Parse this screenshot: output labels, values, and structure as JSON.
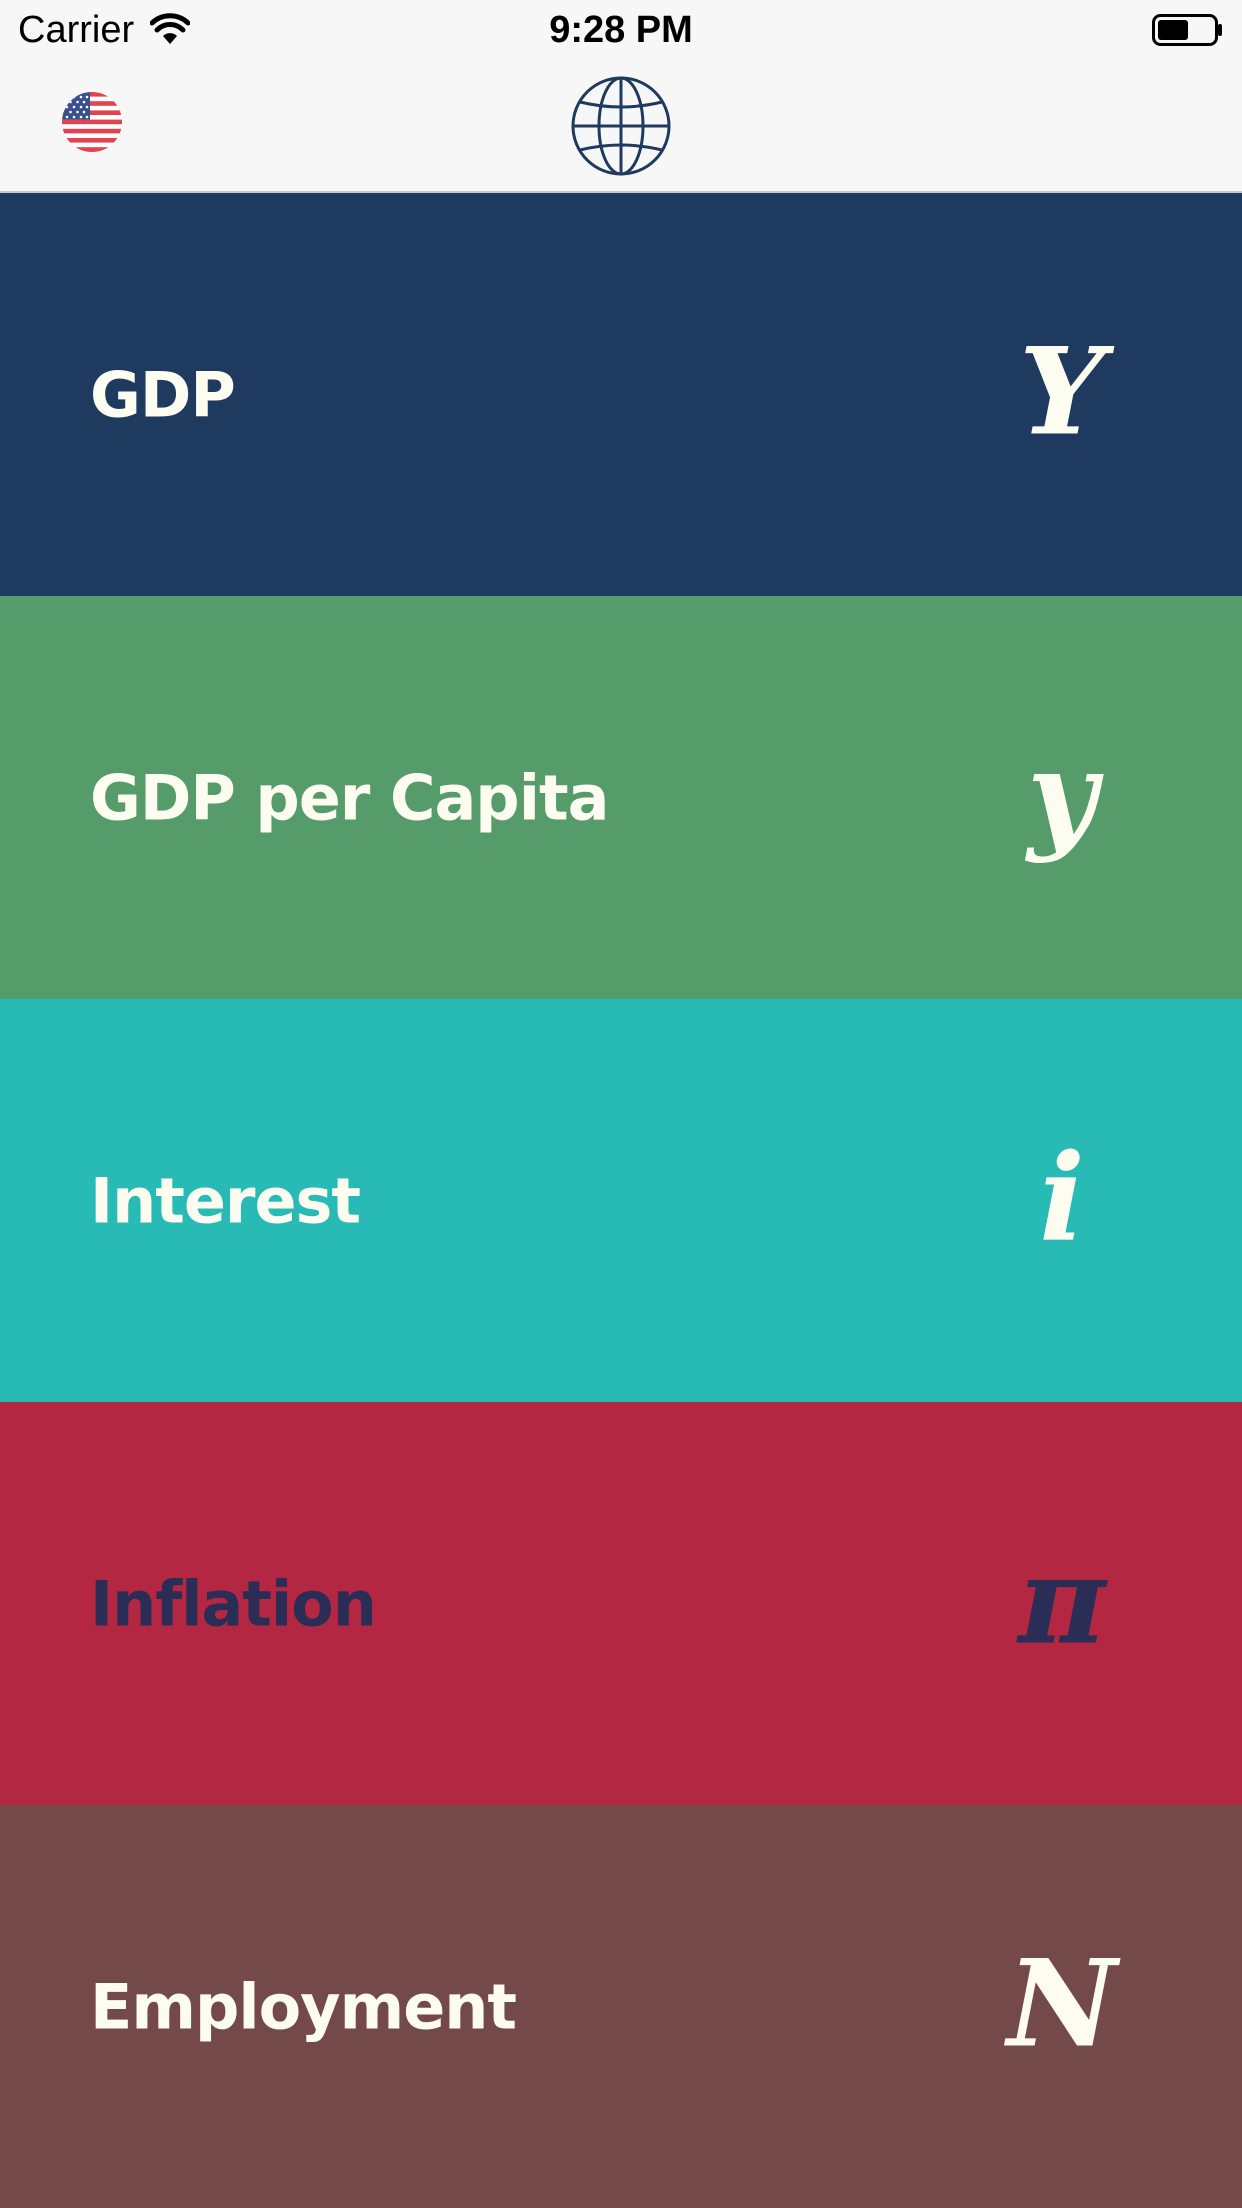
{
  "status_bar": {
    "carrier": "Carrier",
    "time": "9:28 PM",
    "wifi_icon": "wifi-icon",
    "battery_icon": "battery-icon"
  },
  "nav_bar": {
    "country_icon": "us-flag-icon",
    "globe_icon": "globe-icon"
  },
  "categories": [
    {
      "label": "GDP",
      "symbol": "Y",
      "background": "#1f3a5f",
      "text_color": "#fdfcf0"
    },
    {
      "label": "GDP per Capita",
      "symbol": "y",
      "background": "#569b6a",
      "text_color": "#fdfcf0"
    },
    {
      "label": "Interest",
      "symbol": "i",
      "background": "#28bbb5",
      "text_color": "#fdfcf0"
    },
    {
      "label": "Inflation",
      "symbol": "π",
      "background": "#b32742",
      "text_color": "#2a2d55"
    },
    {
      "label": "Employment",
      "symbol": "N",
      "background": "#73494a",
      "text_color": "#fdfcf0"
    }
  ]
}
